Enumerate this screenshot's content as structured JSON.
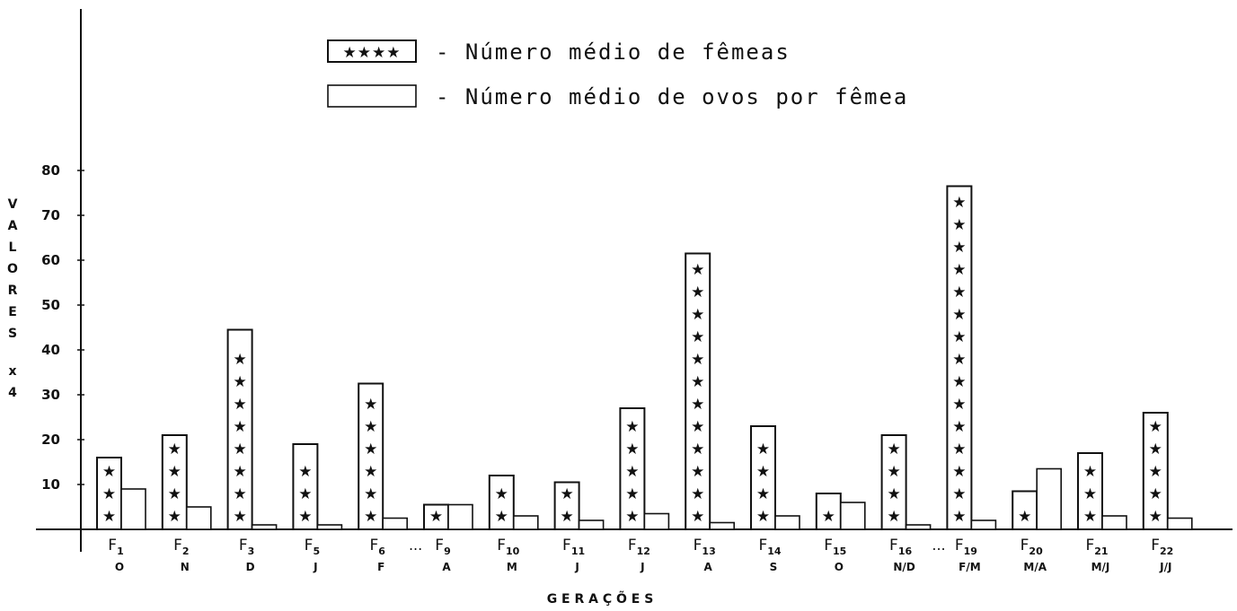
{
  "chart_data": {
    "type": "bar",
    "legend": [
      {
        "symbol": "★★★★",
        "label": "- Número médio de fêmeas"
      },
      {
        "symbol": "",
        "label": "- Número médio de ovos por fêmea"
      }
    ],
    "xlabel": "G E R A Ç Õ E S",
    "ylabel": "VALORES  x4",
    "ylim": [
      0,
      80
    ],
    "yticks": [
      "10",
      "20",
      "30",
      "40",
      "50",
      "60",
      "70",
      "80"
    ],
    "categories": [
      {
        "gen": "F",
        "sub": "1",
        "month": "O"
      },
      {
        "gen": "F",
        "sub": "2",
        "month": "N"
      },
      {
        "gen": "F",
        "sub": "3",
        "month": "D"
      },
      {
        "gen": "F",
        "sub": "5",
        "month": "J"
      },
      {
        "gen": "F",
        "sub": "6",
        "month": "F"
      },
      {
        "gen": "F",
        "sub": "9",
        "month": "A"
      },
      {
        "gen": "F",
        "sub": "10",
        "month": "M"
      },
      {
        "gen": "F",
        "sub": "11",
        "month": "J"
      },
      {
        "gen": "F",
        "sub": "12",
        "month": "J"
      },
      {
        "gen": "F",
        "sub": "13",
        "month": "A"
      },
      {
        "gen": "F",
        "sub": "14",
        "month": "S"
      },
      {
        "gen": "F",
        "sub": "15",
        "month": "O"
      },
      {
        "gen": "F",
        "sub": "16",
        "month": "N/D"
      },
      {
        "gen": "F",
        "sub": "19",
        "month": "F/M"
      },
      {
        "gen": "F",
        "sub": "20",
        "month": "M/A"
      },
      {
        "gen": "F",
        "sub": "21",
        "month": "M/J"
      },
      {
        "gen": "F",
        "sub": "22",
        "month": "J/J"
      }
    ],
    "ellipsis": "...",
    "series": [
      {
        "name": "Número médio de fêmeas",
        "values": [
          16,
          21,
          44.5,
          19,
          32.5,
          5.5,
          12,
          10.5,
          27,
          61.5,
          23,
          8,
          21,
          76.5,
          8.5,
          17,
          26
        ]
      },
      {
        "name": "Número médio de ovos por fêmea",
        "values": [
          9,
          5,
          1,
          1,
          2.5,
          5.5,
          3,
          2,
          3.5,
          1.5,
          3,
          6,
          1,
          2,
          13.5,
          3,
          2.5
        ]
      }
    ]
  }
}
